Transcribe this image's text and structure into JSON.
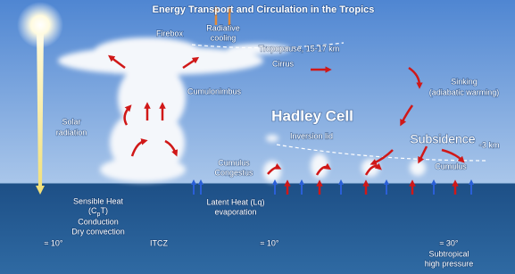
{
  "title": "Energy Transport and Circulation in the Tropics",
  "labels": {
    "firebox": "Firebox",
    "radiative_cooling": [
      "Radiative",
      "cooling"
    ],
    "tropopause": "Tropopause, 15-17 km",
    "cirrus": "Cirrus",
    "sinking": [
      "Sinking",
      "(adiabatic warming)"
    ],
    "cumulonimbus": "Cumulonimbus",
    "solar_radiation": [
      "Solar",
      "radiation"
    ],
    "hadley_cell": "Hadley Cell",
    "inversion_lid": "Inversion lid",
    "subsidence": "Subsidence",
    "subsidence_height": "-3 km",
    "cumulus_congestus": [
      "Cumulus",
      "Congestus"
    ],
    "cumulus": "Cumulus",
    "sensible_heat": {
      "title": "Sensible Heat",
      "formula": [
        "(C",
        "p",
        "T)"
      ],
      "lines": [
        "Conduction",
        "Dry convection"
      ]
    },
    "latent_heat": [
      "Latent Heat (Lq)",
      "evaporation"
    ]
  },
  "latitudes": {
    "left": "≈ 10°",
    "itcz": "ITCZ",
    "mid": "≈ 10°",
    "right": "≈ 30°",
    "right_name": [
      "Subtropical",
      "high pressure"
    ]
  }
}
